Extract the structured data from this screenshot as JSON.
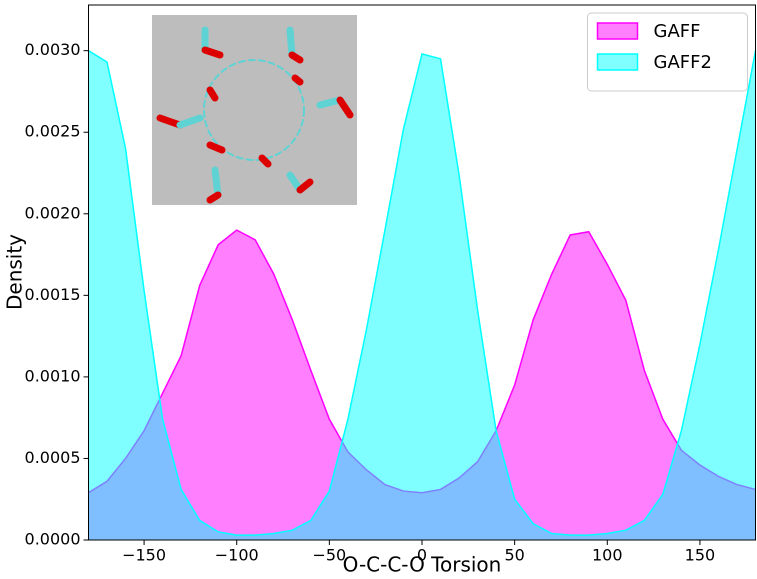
{
  "chart_data": {
    "type": "area",
    "x_label": "O-C-C-O Torsion",
    "y_label": "Density",
    "x": [
      -180,
      -170,
      -160,
      -150,
      -140,
      -130,
      -120,
      -110,
      -100,
      -90,
      -80,
      -70,
      -60,
      -50,
      -40,
      -30,
      -20,
      -10,
      0,
      10,
      20,
      30,
      40,
      50,
      60,
      70,
      80,
      90,
      100,
      110,
      120,
      130,
      140,
      150,
      160,
      170,
      180
    ],
    "series": [
      {
        "name": "GAFF",
        "color": "#ff00ff",
        "values": [
          0.00029,
          0.00036,
          0.0005,
          0.00067,
          0.0009,
          0.00113,
          0.00156,
          0.00181,
          0.0019,
          0.00184,
          0.00163,
          0.00135,
          0.00104,
          0.00074,
          0.00054,
          0.00043,
          0.00034,
          0.0003,
          0.00029,
          0.00031,
          0.00038,
          0.00048,
          0.00067,
          0.00095,
          0.00135,
          0.00163,
          0.00187,
          0.00189,
          0.00169,
          0.00147,
          0.00104,
          0.00074,
          0.00055,
          0.00046,
          0.00039,
          0.00034,
          0.00031
        ]
      },
      {
        "name": "GAFF2",
        "color": "#00ffff",
        "values": [
          0.003,
          0.00293,
          0.0024,
          0.00153,
          0.00074,
          0.00031,
          0.00012,
          5e-05,
          3e-05,
          3e-05,
          4e-05,
          6e-05,
          0.00012,
          0.0003,
          0.00074,
          0.00129,
          0.0019,
          0.00252,
          0.00298,
          0.00295,
          0.00224,
          0.00141,
          0.00067,
          0.00025,
          0.0001,
          4e-05,
          3e-05,
          3e-05,
          4e-05,
          6e-05,
          0.00012,
          0.00028,
          0.00067,
          0.0012,
          0.00178,
          0.00239,
          0.003
        ]
      }
    ],
    "xlim": [
      -180,
      180
    ],
    "xticks": [
      {
        "value": -150,
        "label": "−150"
      },
      {
        "value": -100,
        "label": "−100"
      },
      {
        "value": -50,
        "label": "−50"
      },
      0,
      50,
      100,
      150
    ],
    "ylim": [
      0,
      0.00328
    ],
    "yticks": [
      {
        "value": 0,
        "label": "0.0000"
      },
      {
        "value": 0.0005,
        "label": "0.0005"
      },
      {
        "value": 0.001,
        "label": "0.0010"
      },
      {
        "value": 0.0015,
        "label": "0.0015"
      },
      {
        "value": 0.002,
        "label": "0.0020"
      },
      {
        "value": 0.0025,
        "label": "0.0025"
      },
      {
        "value": 0.003,
        "label": "0.0030"
      }
    ],
    "fill_opacity": 0.5,
    "legend": "upper right"
  }
}
